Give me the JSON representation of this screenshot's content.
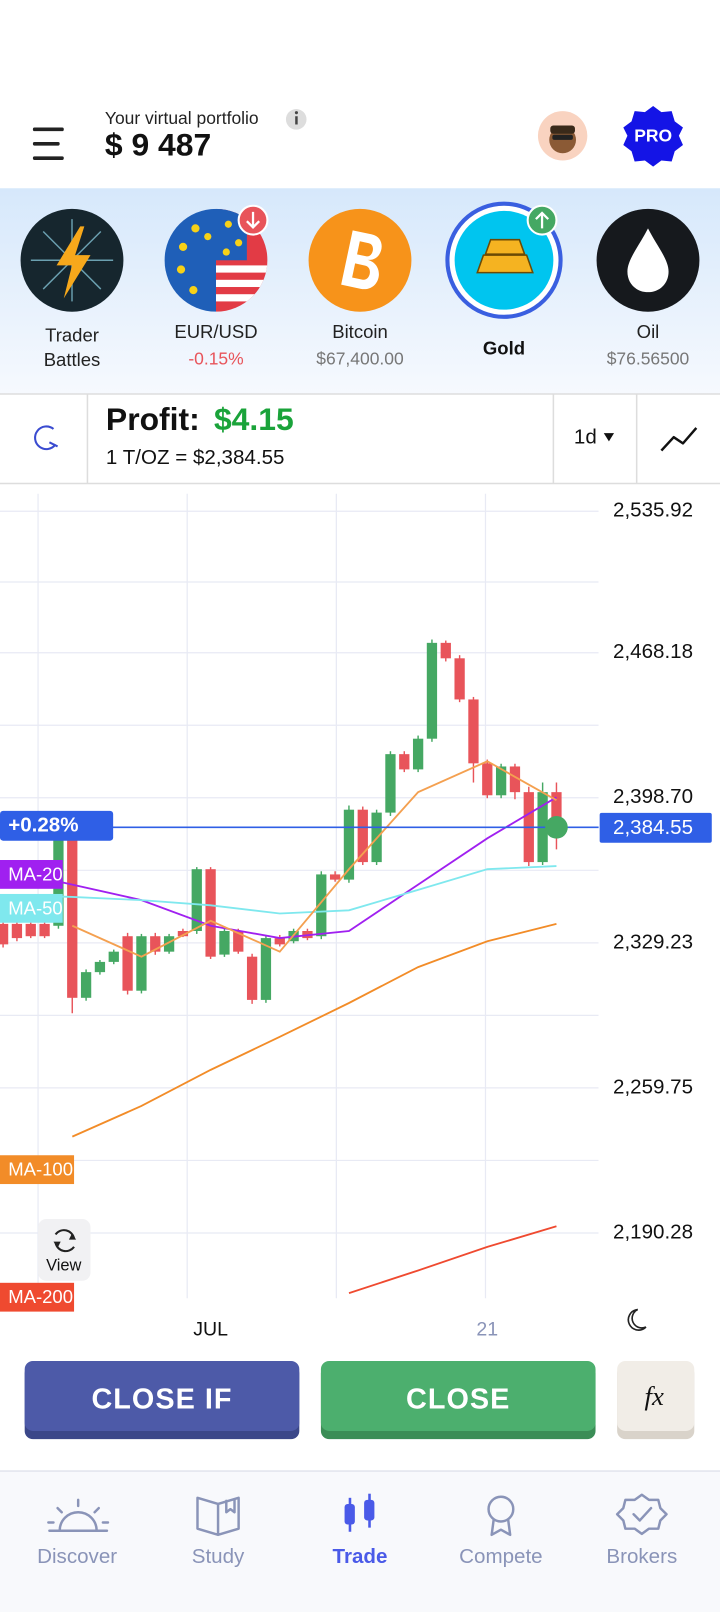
{
  "header": {
    "portfolio_label": "Your virtual portfolio",
    "portfolio_value": "$ 9 487",
    "badge": "PRO"
  },
  "assets": [
    {
      "name": [
        "Trader",
        "Battles"
      ]
    },
    {
      "name": "EUR/USD",
      "change": "-0.15%"
    },
    {
      "name": "Bitcoin",
      "price": "$67,400.00"
    },
    {
      "name": "Gold"
    },
    {
      "name": "Oil",
      "price": "$76.56500"
    }
  ],
  "position": {
    "profit_label": "Profit:",
    "profit": "$4.15",
    "quote": "1 T/OZ = $2,384.55",
    "timeframe": "1d"
  },
  "chart_data": {
    "type": "candlestick",
    "categories": [
      null,
      null,
      null,
      null,
      null,
      null,
      null,
      null,
      null,
      null,
      null,
      null,
      null,
      null,
      null,
      "JUL",
      null,
      null,
      null,
      null,
      null,
      null,
      null,
      null,
      null,
      null,
      null,
      null,
      null,
      null,
      null,
      null,
      null,
      null,
      null,
      "21",
      null,
      null,
      null,
      null,
      null
    ],
    "open": [
      2338.3,
      2338.3,
      2338.3,
      2338.3,
      2337.4,
      2380.7,
      2302.9,
      2315.2,
      2320.1,
      2332.4,
      2306.3,
      2332.4,
      2325.0,
      2334.9,
      2334.9,
      2364.5,
      2323.6,
      2334.9,
      2322.6,
      2301.9,
      2331.5,
      2330.0,
      2334.9,
      2332.4,
      2362.0,
      2359.5,
      2393.0,
      2367.9,
      2391.6,
      2419.6,
      2412.3,
      2427.0,
      2472.9,
      2465.5,
      2445.8,
      2415.2,
      2399.9,
      2413.7,
      2401.4,
      2367.9,
      2401.4
    ],
    "high": [
      2339.5,
      2339.5,
      2339.0,
      2339.0,
      2382.0,
      2382.0,
      2316.5,
      2321.0,
      2326.0,
      2334.0,
      2333.5,
      2334.0,
      2333.5,
      2336.0,
      2365.5,
      2365.5,
      2336.0,
      2336.0,
      2324.0,
      2333.0,
      2333.0,
      2336.0,
      2336.0,
      2363.5,
      2363.5,
      2395.0,
      2394.5,
      2393.0,
      2421.0,
      2421.0,
      2428.5,
      2474.5,
      2474.0,
      2467.0,
      2447.0,
      2417.0,
      2415.0,
      2415.0,
      2404.0,
      2406.0,
      2406.0
    ],
    "low": [
      2327.0,
      2330.0,
      2331.5,
      2331.5,
      2336.0,
      2295.5,
      2301.5,
      2314.0,
      2319.0,
      2304.5,
      2305.0,
      2323.5,
      2324.0,
      2332.0,
      2333.5,
      2321.5,
      2322.5,
      2324.0,
      2300.0,
      2300.5,
      2327.5,
      2329.0,
      2330.5,
      2331.0,
      2358.5,
      2358.0,
      2366.5,
      2366.5,
      2390.0,
      2411.0,
      2411.0,
      2425.5,
      2464.0,
      2444.5,
      2406.0,
      2398.5,
      2398.5,
      2398.0,
      2366.0,
      2366.5,
      2374.0
    ],
    "close": [
      2328.5,
      2331.5,
      2332.4,
      2332.4,
      2380.7,
      2302.9,
      2315.2,
      2320.1,
      2325.0,
      2306.3,
      2332.4,
      2325.0,
      2332.4,
      2332.4,
      2364.5,
      2322.6,
      2334.9,
      2325.0,
      2301.9,
      2331.5,
      2328.5,
      2334.9,
      2331.5,
      2362.0,
      2359.5,
      2393.0,
      2367.9,
      2391.6,
      2419.6,
      2412.3,
      2427.0,
      2472.9,
      2465.5,
      2445.8,
      2415.2,
      2399.9,
      2413.7,
      2401.4,
      2367.9,
      2401.4,
      2384.55
    ],
    "up_color": "#45a863",
    "down_color": "#e8545a",
    "series": [
      {
        "name": "MA-20",
        "color": "#a020f0",
        "x": [
          0,
          5,
          10,
          15,
          20,
          25,
          30,
          35,
          40
        ],
        "values": [
          2364.5,
          2357.1,
          2349.7,
          2337.4,
          2331.5,
          2334.9,
          2357.1,
          2379.3,
          2398.9
        ]
      },
      {
        "name": "MA-50",
        "color": "#7fe8ee",
        "x": [
          0,
          5,
          10,
          15,
          20,
          25,
          30,
          35,
          40
        ],
        "values": [
          2352.2,
          2351.2,
          2349.7,
          2347.2,
          2343.3,
          2344.8,
          2354.6,
          2364.5,
          2366.0
        ]
      },
      {
        "name": "MA-100",
        "color": "#f28c28",
        "x": [
          0,
          5,
          10,
          15,
          20,
          25,
          30,
          35,
          40
        ],
        "values": [
          null,
          2236.4,
          2251.1,
          2268.4,
          2284.2,
          2300.4,
          2317.6,
          2330.0,
          2338.3
        ]
      },
      {
        "name": "MA-200",
        "color": "#ef4a30",
        "x": [
          0,
          5,
          10,
          15,
          20,
          25,
          30,
          35,
          40
        ],
        "values": [
          null,
          null,
          null,
          null,
          null,
          2161.5,
          2172.3,
          2183.6,
          2193.5
        ]
      },
      {
        "color": "#f4a050",
        "x": [
          5,
          10,
          15,
          20,
          25,
          30,
          35,
          40
        ],
        "values": [
          2337.4,
          2322.6,
          2339.8,
          2325.0,
          2364.5,
          2401.4,
          2416.2,
          2397.5
        ]
      }
    ],
    "ylim": [
      2160,
      2544
    ],
    "yticks": [
      {
        "value": 2535.92,
        "label": "2,535.92"
      },
      {
        "value": 2468.18,
        "label": "2,468.18"
      },
      {
        "value": 2398.7,
        "label": "2,398.70"
      },
      {
        "value": 2329.23,
        "label": "2,329.23"
      },
      {
        "value": 2259.75,
        "label": "2,259.75"
      },
      {
        "value": 2190.28,
        "label": "2,190.28"
      }
    ],
    "grid": true,
    "last_price": {
      "value": 2384.55,
      "label": "2,384.55"
    },
    "change": "+0.28%",
    "price_color": "#2f5fe6"
  },
  "buttons": {
    "close_if": "CLOSE IF",
    "close": "CLOSE",
    "formula": "fx",
    "view": "View"
  },
  "nav": [
    "Discover",
    "Study",
    "Trade",
    "Compete",
    "Brokers"
  ]
}
